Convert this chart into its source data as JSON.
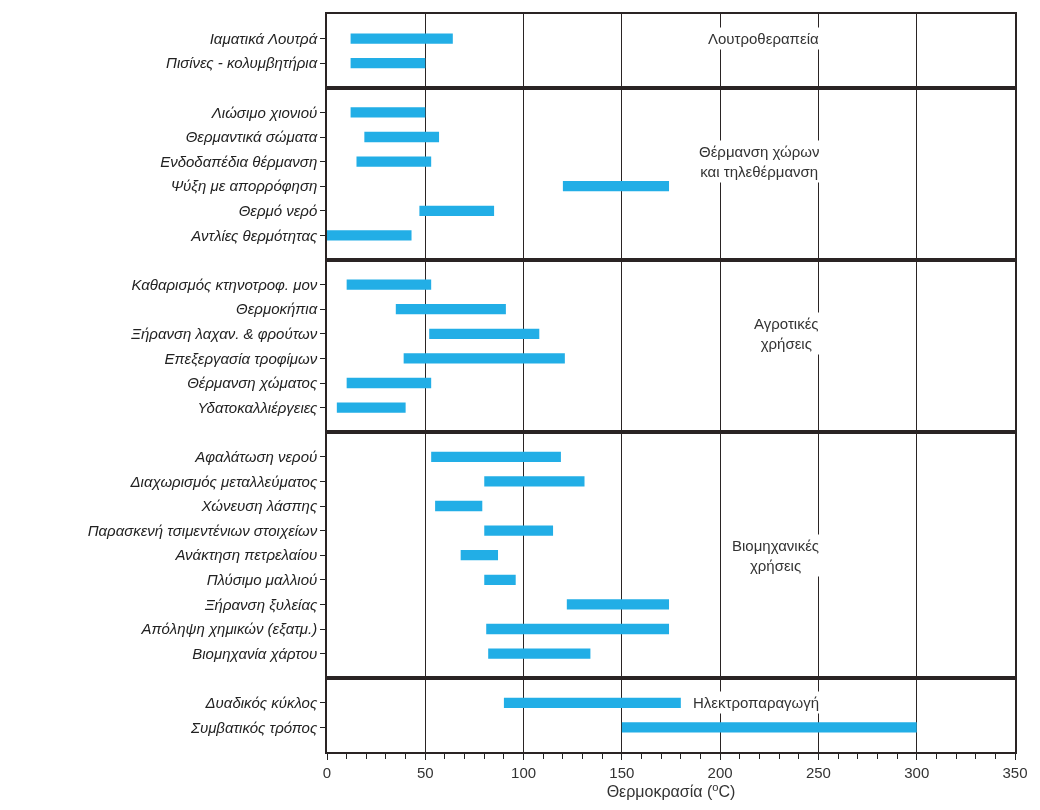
{
  "chart_data": [
    {
      "type": "bar",
      "orientation": "horizontal",
      "categories": [
        "Ιαματικά Λουτρά",
        "Πισίνες - κολυμβητήρια"
      ],
      "base": [
        12,
        12
      ],
      "values": [
        52,
        38
      ],
      "color": "#22aee6",
      "xlim": [
        0,
        350
      ],
      "xticks": [
        0,
        50,
        100,
        150,
        200,
        250,
        300,
        350
      ],
      "grid": "x",
      "tick_labels": "y",
      "annotations": [
        "Λουτροθεραπεία"
      ]
    },
    {
      "type": "bar",
      "orientation": "horizontal",
      "categories": [
        "Λιώσιμο χιονιού",
        "Θερμαντικά σώματα",
        "Ενδοδαπέδια θέρμανση",
        "Ψύξη με απορρόφηση",
        "Θερμό νερό",
        "Αντλίες θερμότητας"
      ],
      "base": [
        12,
        19,
        15,
        120,
        47,
        0
      ],
      "values": [
        38,
        38,
        38,
        54,
        38,
        43
      ],
      "color": "#22aee6",
      "xlim": [
        0,
        350
      ],
      "xticks": [
        0,
        50,
        100,
        150,
        200,
        250,
        300,
        350
      ],
      "grid": "x",
      "tick_labels": "y",
      "annotations": [
        "Θέρμανση χώρων\nκαι τηλεθέρμανση"
      ]
    },
    {
      "type": "bar",
      "orientation": "horizontal",
      "categories": [
        "Καθαρισμός κτηνοτροφ. μον",
        "Θερμοκήπια",
        "Ξήρανση λαχαν. & φρούτων",
        "Επεξεργασία τροφίμων",
        "Θέρμανση χώματος",
        "Υδατοκαλλιέργειες"
      ],
      "base": [
        10,
        35,
        52,
        39,
        10,
        5
      ],
      "values": [
        43,
        56,
        56,
        82,
        43,
        35
      ],
      "color": "#22aee6",
      "xlim": [
        0,
        350
      ],
      "xticks": [
        0,
        50,
        100,
        150,
        200,
        250,
        300,
        350
      ],
      "grid": "x",
      "tick_labels": "y",
      "annotations": [
        "Αγροτικές\nχρήσεις"
      ]
    },
    {
      "type": "bar",
      "orientation": "horizontal",
      "categories": [
        "Αφαλάτωση νερού",
        "Διαχωρισμός μεταλλεύματος",
        "Χώνευση λάσπης",
        "Παρασκενή τσιμεντένιων στοιχείων",
        "Ανάκτηση πετρελαίου",
        "Πλύσιμο μαλλιού",
        "Ξήρανση ξυλείας",
        "Απόληψη χημικών (εξατμ.)",
        "Βιομηχανία χάρτου"
      ],
      "base": [
        53,
        80,
        55,
        80,
        68,
        80,
        122,
        81,
        82
      ],
      "values": [
        66,
        51,
        24,
        35,
        19,
        16,
        52,
        93,
        52
      ],
      "color": "#22aee6",
      "xlim": [
        0,
        350
      ],
      "xticks": [
        0,
        50,
        100,
        150,
        200,
        250,
        300,
        350
      ],
      "grid": "x",
      "tick_labels": "y",
      "annotations": [
        "Βιομηχανικές\nχρήσεις"
      ]
    },
    {
      "type": "bar",
      "orientation": "horizontal",
      "categories": [
        "Δυαδικός κύκλος",
        "Συμβατικός τρόπος"
      ],
      "base": [
        90,
        150
      ],
      "values": [
        90,
        150
      ],
      "color": "#22aee6",
      "xlim": [
        0,
        350
      ],
      "xticks": [
        0,
        50,
        100,
        150,
        200,
        250,
        300,
        350
      ],
      "grid": "x",
      "xlabel": "Θερμοκρασία ($^{o}$C)",
      "annotations": [
        "Ηλεκτροπαραγωγή"
      ]
    }
  ]
}
